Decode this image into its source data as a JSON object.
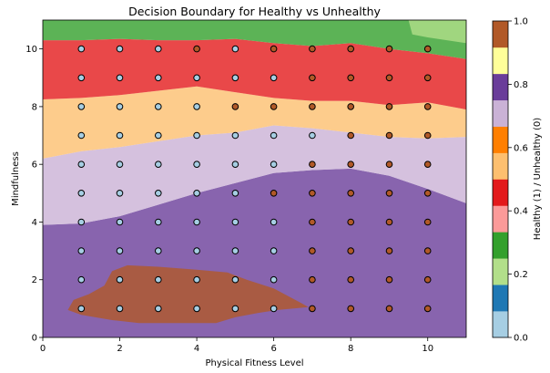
{
  "chart_data": {
    "type": "scatter",
    "title": "Decision Boundary for Healthy vs Unhealthy",
    "xlabel": "Physical Fitness Level",
    "ylabel": "Mindfulness",
    "xlim": [
      0,
      11
    ],
    "ylim": [
      0,
      11
    ],
    "xticks": [
      "0",
      "2",
      "4",
      "6",
      "8",
      "10"
    ],
    "yticks": [
      "0",
      "2",
      "4",
      "6",
      "8",
      "10"
    ],
    "colorbar": {
      "label": "Healthy (1) / Unhealthy (0)",
      "ticks": [
        "0.0",
        "0.2",
        "0.4",
        "0.6",
        "0.8",
        "1.0"
      ],
      "colormap": "Paired",
      "colors": [
        "#a6cee3",
        "#1f78b4",
        "#b2df8a",
        "#33a02c",
        "#fb9a99",
        "#e31a1c",
        "#fdbf6f",
        "#ff7f00",
        "#cab2d6",
        "#6a3d9a",
        "#ffff99",
        "#b15928"
      ]
    },
    "grid": false,
    "regions": [
      {
        "level": 0.75,
        "color": "#6a3d9a",
        "description": "lower purple region"
      },
      {
        "level": 0.65,
        "color": "#cab2d6",
        "description": "light purple band"
      },
      {
        "level": 0.55,
        "color": "#fdbf6f",
        "description": "light orange band"
      },
      {
        "level": 0.45,
        "color": "#e31a1c",
        "description": "red band"
      },
      {
        "level": 0.25,
        "color": "#33a02c",
        "description": "green band"
      },
      {
        "level": 0.15,
        "color": "#b2df8a",
        "description": "light green top-right"
      },
      {
        "level": 0.95,
        "color": "#b15928",
        "description": "brown island"
      }
    ],
    "x": [
      1,
      2,
      3,
      4,
      5,
      6,
      7,
      8,
      9,
      10
    ],
    "y": [
      1,
      2,
      3,
      4,
      5,
      6,
      7,
      8,
      9,
      10
    ],
    "point_classes": [
      [
        0,
        0,
        0,
        0,
        0,
        0,
        1,
        1,
        1,
        1
      ],
      [
        0,
        0,
        0,
        0,
        0,
        0,
        1,
        1,
        1,
        1
      ],
      [
        0,
        0,
        0,
        0,
        0,
        0,
        1,
        1,
        1,
        1
      ],
      [
        0,
        0,
        0,
        0,
        0,
        0,
        1,
        1,
        1,
        1
      ],
      [
        0,
        0,
        0,
        0,
        0,
        1,
        1,
        1,
        1,
        1
      ],
      [
        0,
        0,
        0,
        0,
        0,
        0,
        1,
        1,
        1,
        1
      ],
      [
        0,
        0,
        0,
        0,
        0,
        0,
        0,
        1,
        1,
        1
      ],
      [
        0,
        0,
        0,
        0,
        1,
        1,
        1,
        1,
        1,
        1
      ],
      [
        0,
        0,
        0,
        0,
        0,
        0,
        1,
        1,
        1,
        1
      ],
      [
        0,
        0,
        0,
        1,
        0,
        1,
        1,
        1,
        1,
        1
      ]
    ],
    "point_class_colors": {
      "0": "#a6cee3",
      "1": "#b15928"
    }
  }
}
